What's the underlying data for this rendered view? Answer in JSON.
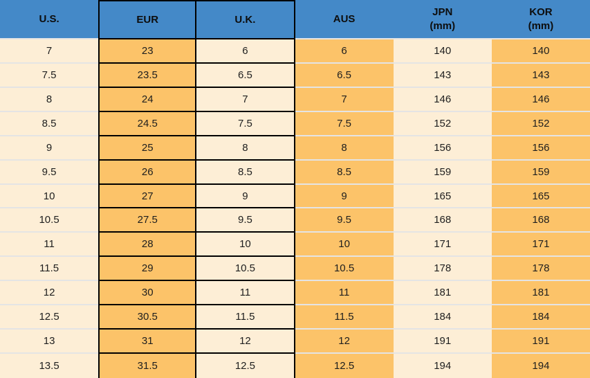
{
  "chart_data": {
    "type": "table",
    "columns": [
      "U.S.",
      "EUR",
      "U.K.",
      "AUS",
      "JPN (mm)",
      "KOR (mm)"
    ],
    "rows": [
      [
        "7",
        "23",
        "6",
        "6",
        "140",
        "140"
      ],
      [
        "7.5",
        "23.5",
        "6.5",
        "6.5",
        "143",
        "143"
      ],
      [
        "8",
        "24",
        "7",
        "7",
        "146",
        "146"
      ],
      [
        "8.5",
        "24.5",
        "7.5",
        "7.5",
        "152",
        "152"
      ],
      [
        "9",
        "25",
        "8",
        "8",
        "156",
        "156"
      ],
      [
        "9.5",
        "26",
        "8.5",
        "8.5",
        "159",
        "159"
      ],
      [
        "10",
        "27",
        "9",
        "9",
        "165",
        "165"
      ],
      [
        "10.5",
        "27.5",
        "9.5",
        "9.5",
        "168",
        "168"
      ],
      [
        "11",
        "28",
        "10",
        "10",
        "171",
        "171"
      ],
      [
        "11.5",
        "29",
        "10.5",
        "10.5",
        "178",
        "178"
      ],
      [
        "12",
        "30",
        "11",
        "11",
        "181",
        "181"
      ],
      [
        "12.5",
        "30.5",
        "11.5",
        "11.5",
        "184",
        "184"
      ],
      [
        "13",
        "31",
        "12",
        "12",
        "191",
        "191"
      ],
      [
        "13.5",
        "31.5",
        "12.5",
        "12.5",
        "194",
        "194"
      ]
    ]
  },
  "table": {
    "headers": [
      {
        "label": "U.S.",
        "sublabel": ""
      },
      {
        "label": "EUR",
        "sublabel": ""
      },
      {
        "label": "U.K.",
        "sublabel": ""
      },
      {
        "label": "AUS",
        "sublabel": ""
      },
      {
        "label": "JPN",
        "sublabel": "(mm)"
      },
      {
        "label": "KOR",
        "sublabel": "(mm)"
      }
    ],
    "rows": [
      [
        "7",
        "23",
        "6",
        "6",
        "140",
        "140"
      ],
      [
        "7.5",
        "23.5",
        "6.5",
        "6.5",
        "143",
        "143"
      ],
      [
        "8",
        "24",
        "7",
        "7",
        "146",
        "146"
      ],
      [
        "8.5",
        "24.5",
        "7.5",
        "7.5",
        "152",
        "152"
      ],
      [
        "9",
        "25",
        "8",
        "8",
        "156",
        "156"
      ],
      [
        "9.5",
        "26",
        "8.5",
        "8.5",
        "159",
        "159"
      ],
      [
        "10",
        "27",
        "9",
        "9",
        "165",
        "165"
      ],
      [
        "10.5",
        "27.5",
        "9.5",
        "9.5",
        "168",
        "168"
      ],
      [
        "11",
        "28",
        "10",
        "10",
        "171",
        "171"
      ],
      [
        "11.5",
        "29",
        "10.5",
        "10.5",
        "178",
        "178"
      ],
      [
        "12",
        "30",
        "11",
        "11",
        "181",
        "181"
      ],
      [
        "12.5",
        "30.5",
        "11.5",
        "11.5",
        "184",
        "184"
      ],
      [
        "13",
        "31",
        "12",
        "12",
        "191",
        "191"
      ],
      [
        "13.5",
        "31.5",
        "12.5",
        "12.5",
        "194",
        "194"
      ]
    ]
  },
  "colors": {
    "header_blue": "#4489c8",
    "cell_cream": "#fdeed6",
    "cell_orange": "#fcc369",
    "black_border": "#000000",
    "row_separator": "#e4e4e4",
    "text": "#1e1e1e"
  }
}
